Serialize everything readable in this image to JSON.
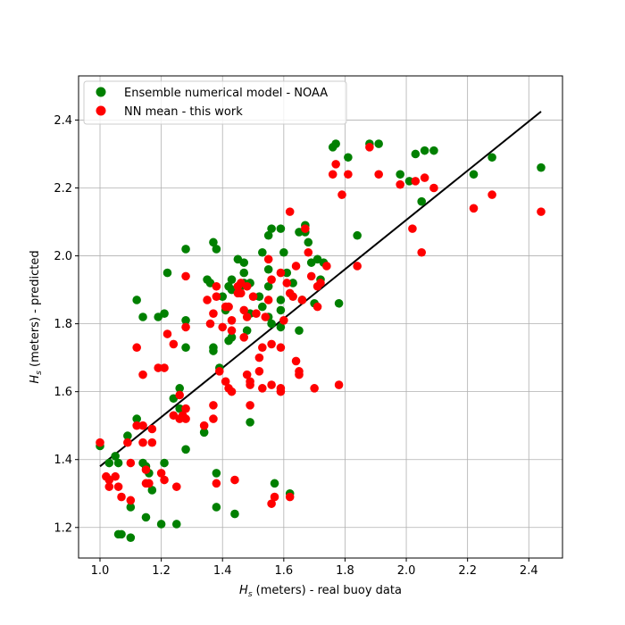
{
  "chart_data": {
    "type": "scatter",
    "title": "",
    "xlabel": {
      "sym": "H",
      "sub": "s",
      "rest": " (meters) - real buoy data"
    },
    "ylabel": {
      "sym": "H",
      "sub": "s",
      "rest": " (meters) - predicted"
    },
    "xlim": [
      0.93,
      2.51
    ],
    "ylim": [
      1.11,
      2.53
    ],
    "xticks": [
      1.0,
      1.2,
      1.4,
      1.6,
      1.8,
      2.0,
      2.2,
      2.4
    ],
    "xtick_labels": [
      "1.0",
      "1.2",
      "1.4",
      "1.6",
      "1.8",
      "2.0",
      "2.2",
      "2.4"
    ],
    "yticks": [
      1.2,
      1.4,
      1.6,
      1.8,
      2.0,
      2.2,
      2.4
    ],
    "ytick_labels": [
      "1.2",
      "1.4",
      "1.6",
      "1.8",
      "2.0",
      "2.2",
      "2.4"
    ],
    "grid": true,
    "legend_position": "top-left",
    "fit_line": {
      "x": [
        1.0,
        2.44
      ],
      "y": [
        1.38,
        2.425
      ],
      "color": "#000000"
    },
    "series": [
      {
        "name": "Ensemble numerical model - NOAA",
        "color": "#008000",
        "points": [
          [
            1.0,
            1.44
          ],
          [
            1.03,
            1.39
          ],
          [
            1.05,
            1.41
          ],
          [
            1.06,
            1.39
          ],
          [
            1.06,
            1.18
          ],
          [
            1.07,
            1.18
          ],
          [
            1.09,
            1.47
          ],
          [
            1.1,
            1.26
          ],
          [
            1.1,
            1.17
          ],
          [
            1.12,
            1.87
          ],
          [
            1.12,
            1.52
          ],
          [
            1.14,
            1.82
          ],
          [
            1.14,
            1.39
          ],
          [
            1.15,
            1.38
          ],
          [
            1.15,
            1.23
          ],
          [
            1.16,
            1.36
          ],
          [
            1.17,
            1.31
          ],
          [
            1.19,
            1.82
          ],
          [
            1.2,
            1.21
          ],
          [
            1.21,
            1.83
          ],
          [
            1.21,
            1.39
          ],
          [
            1.22,
            1.95
          ],
          [
            1.24,
            1.58
          ],
          [
            1.25,
            1.21
          ],
          [
            1.26,
            1.61
          ],
          [
            1.26,
            1.55
          ],
          [
            1.28,
            2.02
          ],
          [
            1.28,
            1.81
          ],
          [
            1.28,
            1.73
          ],
          [
            1.28,
            1.43
          ],
          [
            1.34,
            1.48
          ],
          [
            1.35,
            1.93
          ],
          [
            1.36,
            1.92
          ],
          [
            1.37,
            2.04
          ],
          [
            1.37,
            1.73
          ],
          [
            1.37,
            1.72
          ],
          [
            1.38,
            2.02
          ],
          [
            1.38,
            1.36
          ],
          [
            1.38,
            1.26
          ],
          [
            1.39,
            1.67
          ],
          [
            1.4,
            1.88
          ],
          [
            1.41,
            1.84
          ],
          [
            1.42,
            1.91
          ],
          [
            1.42,
            1.75
          ],
          [
            1.43,
            1.93
          ],
          [
            1.43,
            1.9
          ],
          [
            1.43,
            1.76
          ],
          [
            1.44,
            1.24
          ],
          [
            1.45,
            1.99
          ],
          [
            1.46,
            1.91
          ],
          [
            1.47,
            1.98
          ],
          [
            1.47,
            1.95
          ],
          [
            1.47,
            1.92
          ],
          [
            1.48,
            1.78
          ],
          [
            1.49,
            1.92
          ],
          [
            1.49,
            1.83
          ],
          [
            1.49,
            1.51
          ],
          [
            1.52,
            1.88
          ],
          [
            1.53,
            2.01
          ],
          [
            1.53,
            1.85
          ],
          [
            1.55,
            2.06
          ],
          [
            1.55,
            1.96
          ],
          [
            1.55,
            1.91
          ],
          [
            1.55,
            1.82
          ],
          [
            1.56,
            2.08
          ],
          [
            1.56,
            1.8
          ],
          [
            1.57,
            1.33
          ],
          [
            1.59,
            2.08
          ],
          [
            1.59,
            1.87
          ],
          [
            1.59,
            1.84
          ],
          [
            1.59,
            1.79
          ],
          [
            1.6,
            2.01
          ],
          [
            1.61,
            1.95
          ],
          [
            1.62,
            1.3
          ],
          [
            1.63,
            1.92
          ],
          [
            1.65,
            2.07
          ],
          [
            1.65,
            1.78
          ],
          [
            1.66,
            1.87
          ],
          [
            1.67,
            2.09
          ],
          [
            1.67,
            2.07
          ],
          [
            1.68,
            2.04
          ],
          [
            1.69,
            1.98
          ],
          [
            1.7,
            1.86
          ],
          [
            1.71,
            1.99
          ],
          [
            1.72,
            1.93
          ],
          [
            1.73,
            1.98
          ],
          [
            1.76,
            2.32
          ],
          [
            1.77,
            2.33
          ],
          [
            1.78,
            1.86
          ],
          [
            1.81,
            2.29
          ],
          [
            1.84,
            2.06
          ],
          [
            1.88,
            2.33
          ],
          [
            1.91,
            2.33
          ],
          [
            1.98,
            2.24
          ],
          [
            2.01,
            2.22
          ],
          [
            2.03,
            2.3
          ],
          [
            2.05,
            2.16
          ],
          [
            2.06,
            2.31
          ],
          [
            2.09,
            2.31
          ],
          [
            2.22,
            2.24
          ],
          [
            2.28,
            2.29
          ],
          [
            2.44,
            2.26
          ]
        ]
      },
      {
        "name": "NN mean - this work",
        "color": "#ff0000",
        "points": [
          [
            1.0,
            1.45
          ],
          [
            1.02,
            1.35
          ],
          [
            1.03,
            1.34
          ],
          [
            1.03,
            1.32
          ],
          [
            1.05,
            1.35
          ],
          [
            1.06,
            1.32
          ],
          [
            1.07,
            1.29
          ],
          [
            1.09,
            1.45
          ],
          [
            1.1,
            1.39
          ],
          [
            1.1,
            1.28
          ],
          [
            1.12,
            1.73
          ],
          [
            1.12,
            1.5
          ],
          [
            1.14,
            1.65
          ],
          [
            1.14,
            1.5
          ],
          [
            1.14,
            1.45
          ],
          [
            1.15,
            1.33
          ],
          [
            1.15,
            1.37
          ],
          [
            1.16,
            1.33
          ],
          [
            1.17,
            1.45
          ],
          [
            1.17,
            1.49
          ],
          [
            1.19,
            1.67
          ],
          [
            1.2,
            1.36
          ],
          [
            1.21,
            1.67
          ],
          [
            1.21,
            1.34
          ],
          [
            1.22,
            1.77
          ],
          [
            1.24,
            1.74
          ],
          [
            1.24,
            1.53
          ],
          [
            1.25,
            1.32
          ],
          [
            1.26,
            1.59
          ],
          [
            1.26,
            1.52
          ],
          [
            1.27,
            1.53
          ],
          [
            1.28,
            1.94
          ],
          [
            1.28,
            1.79
          ],
          [
            1.28,
            1.55
          ],
          [
            1.28,
            1.52
          ],
          [
            1.34,
            1.5
          ],
          [
            1.35,
            1.87
          ],
          [
            1.36,
            1.8
          ],
          [
            1.37,
            1.83
          ],
          [
            1.37,
            1.56
          ],
          [
            1.37,
            1.52
          ],
          [
            1.38,
            1.91
          ],
          [
            1.38,
            1.88
          ],
          [
            1.38,
            1.33
          ],
          [
            1.39,
            1.66
          ],
          [
            1.4,
            1.79
          ],
          [
            1.41,
            1.63
          ],
          [
            1.41,
            1.85
          ],
          [
            1.42,
            1.85
          ],
          [
            1.42,
            1.61
          ],
          [
            1.43,
            1.81
          ],
          [
            1.43,
            1.78
          ],
          [
            1.43,
            1.6
          ],
          [
            1.44,
            1.34
          ],
          [
            1.45,
            1.89
          ],
          [
            1.45,
            1.91
          ],
          [
            1.46,
            1.92
          ],
          [
            1.46,
            1.89
          ],
          [
            1.47,
            1.76
          ],
          [
            1.47,
            1.84
          ],
          [
            1.48,
            1.91
          ],
          [
            1.48,
            1.82
          ],
          [
            1.48,
            1.65
          ],
          [
            1.49,
            1.63
          ],
          [
            1.49,
            1.62
          ],
          [
            1.49,
            1.56
          ],
          [
            1.5,
            1.88
          ],
          [
            1.51,
            1.83
          ],
          [
            1.52,
            1.7
          ],
          [
            1.52,
            1.66
          ],
          [
            1.53,
            1.73
          ],
          [
            1.53,
            1.61
          ],
          [
            1.54,
            1.82
          ],
          [
            1.55,
            1.87
          ],
          [
            1.55,
            1.99
          ],
          [
            1.56,
            1.93
          ],
          [
            1.56,
            1.74
          ],
          [
            1.56,
            1.62
          ],
          [
            1.56,
            1.27
          ],
          [
            1.57,
            1.29
          ],
          [
            1.59,
            1.95
          ],
          [
            1.59,
            1.73
          ],
          [
            1.59,
            1.61
          ],
          [
            1.59,
            1.6
          ],
          [
            1.6,
            1.81
          ],
          [
            1.61,
            1.92
          ],
          [
            1.62,
            2.13
          ],
          [
            1.62,
            1.89
          ],
          [
            1.62,
            1.29
          ],
          [
            1.63,
            1.88
          ],
          [
            1.64,
            1.97
          ],
          [
            1.64,
            1.69
          ],
          [
            1.65,
            1.66
          ],
          [
            1.65,
            1.65
          ],
          [
            1.66,
            1.87
          ],
          [
            1.67,
            2.08
          ],
          [
            1.68,
            2.01
          ],
          [
            1.69,
            1.94
          ],
          [
            1.7,
            1.61
          ],
          [
            1.71,
            1.91
          ],
          [
            1.71,
            1.85
          ],
          [
            1.72,
            1.92
          ],
          [
            1.74,
            1.97
          ],
          [
            1.76,
            2.24
          ],
          [
            1.77,
            2.27
          ],
          [
            1.78,
            1.62
          ],
          [
            1.79,
            2.18
          ],
          [
            1.81,
            2.24
          ],
          [
            1.84,
            1.97
          ],
          [
            1.88,
            2.32
          ],
          [
            1.91,
            2.24
          ],
          [
            1.98,
            2.21
          ],
          [
            2.02,
            2.08
          ],
          [
            2.03,
            2.22
          ],
          [
            2.05,
            2.01
          ],
          [
            2.06,
            2.23
          ],
          [
            2.09,
            2.2
          ],
          [
            2.22,
            2.14
          ],
          [
            2.28,
            2.18
          ],
          [
            2.44,
            2.13
          ]
        ]
      }
    ]
  }
}
